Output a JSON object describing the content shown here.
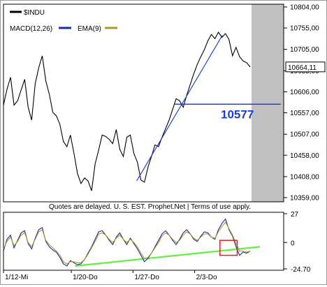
{
  "chart_data": [
    {
      "type": "line",
      "symbol": "$INDU",
      "legend": {
        "symbol": "$INDU",
        "macd": "MACD(12,26)",
        "ema": "EMA(9)"
      },
      "y_ticks": [
        10804,
        10755,
        10705,
        10655,
        10606,
        10557,
        10507,
        10458,
        10408,
        10359
      ],
      "y_tick_labels": [
        "10804,00",
        "10755,00",
        "10705,00",
        "10655,00",
        "10606,00",
        "10557,00",
        "10507,00",
        "10458,00",
        "10408,00",
        "10359,00"
      ],
      "ylim": [
        10359,
        10804
      ],
      "last_value_label": "10664,11",
      "last_value": 10664.11,
      "support_level": 10577,
      "support_label": "10577",
      "trendline": {
        "from": {
          "day_index": 10.8,
          "value": 10398
        },
        "to": {
          "day_index": 17.75,
          "value": 10738
        }
      },
      "after_hours_shading": true,
      "colors": {
        "price": "#000000",
        "trend": "#2243d6",
        "support_text": "#1a3ecf",
        "shade": "#c0c0c0"
      },
      "series": [
        {
          "name": "$INDU",
          "values": [
            10575,
            10612,
            10640,
            10575,
            10585,
            10610,
            10635,
            10570,
            10540,
            10625,
            10662,
            10690,
            10632,
            10600,
            10558,
            10550,
            10530,
            10490,
            10478,
            10505,
            10462,
            10415,
            10392,
            10405,
            10398,
            10375,
            10437,
            10470,
            10505,
            10502,
            10495,
            10485,
            10518,
            10472,
            10455,
            10500,
            10505,
            10462,
            10442,
            10400,
            10395,
            10430,
            10455,
            10482,
            10478,
            10500,
            10520,
            10540,
            10565,
            10590,
            10585,
            10570,
            10598,
            10623,
            10648,
            10670,
            10688,
            10704,
            10725,
            10740,
            10730,
            10745,
            10733,
            10742,
            10728,
            10690,
            10710,
            10688,
            10678,
            10674,
            10664
          ]
        }
      ],
      "x_span_days": 20
    },
    {
      "type": "line",
      "title": "",
      "y_ticks": [
        27,
        0,
        -24.7
      ],
      "y_tick_labels": [
        "27",
        "0",
        "-24.70"
      ],
      "ylim": [
        -24.7,
        27
      ],
      "x_labels": [
        "1/12-Mi",
        "1/20-Do",
        "1/27-Do",
        "2/3-Do"
      ],
      "x_label_days": [
        0,
        5.5,
        10.5,
        15.5
      ],
      "notice": "Quotes are delayed. U. S. EST. Prophet.Net | Terms of use apply.",
      "colors": {
        "macd": "#1d2ca3",
        "ema": "#a59b22",
        "trend": "#66ee44",
        "highlight": "#e02020"
      },
      "trendline": {
        "from": {
          "day_index": 5.8,
          "value": -22
        },
        "to": {
          "day_index": 20.8,
          "value": -4
        }
      },
      "highlight_box": {
        "from_day": 17.55,
        "to_day": 18.95,
        "from_value": -12,
        "to_value": 2
      },
      "series": [
        {
          "name": "MACD(12,26)",
          "values": [
            -8,
            3,
            7,
            -5,
            2,
            9,
            11,
            -1,
            -6,
            4,
            12,
            14,
            1,
            -4,
            -7,
            -9,
            -14,
            -20,
            -22,
            -17,
            -19,
            -21,
            -20,
            -16,
            -10,
            -4,
            3,
            10,
            11,
            7,
            2,
            -2,
            5,
            9,
            3,
            -2,
            4,
            -1,
            -6,
            -12,
            -18,
            -15,
            -10,
            -4,
            2,
            8,
            11,
            7,
            2,
            -2,
            3,
            9,
            12,
            8,
            3,
            1,
            6,
            10,
            9,
            5,
            3,
            12,
            18,
            22,
            12,
            6,
            -4,
            -12,
            -9,
            -10,
            -8
          ]
        },
        {
          "name": "EMA(9)",
          "values": [
            -6,
            1,
            5,
            -3,
            1,
            7,
            9,
            0,
            -4,
            3,
            10,
            12,
            2,
            -2,
            -5,
            -8,
            -12,
            -18,
            -20,
            -18,
            -18,
            -19,
            -19,
            -16,
            -11,
            -5,
            1,
            8,
            9,
            7,
            3,
            0,
            4,
            7,
            3,
            0,
            3,
            0,
            -4,
            -10,
            -15,
            -14,
            -10,
            -5,
            0,
            6,
            9,
            7,
            3,
            0,
            2,
            7,
            10,
            8,
            4,
            2,
            5,
            8,
            8,
            5,
            4,
            10,
            15,
            19,
            13,
            7,
            -1,
            -8,
            -8,
            -9,
            -8
          ]
        }
      ]
    }
  ]
}
